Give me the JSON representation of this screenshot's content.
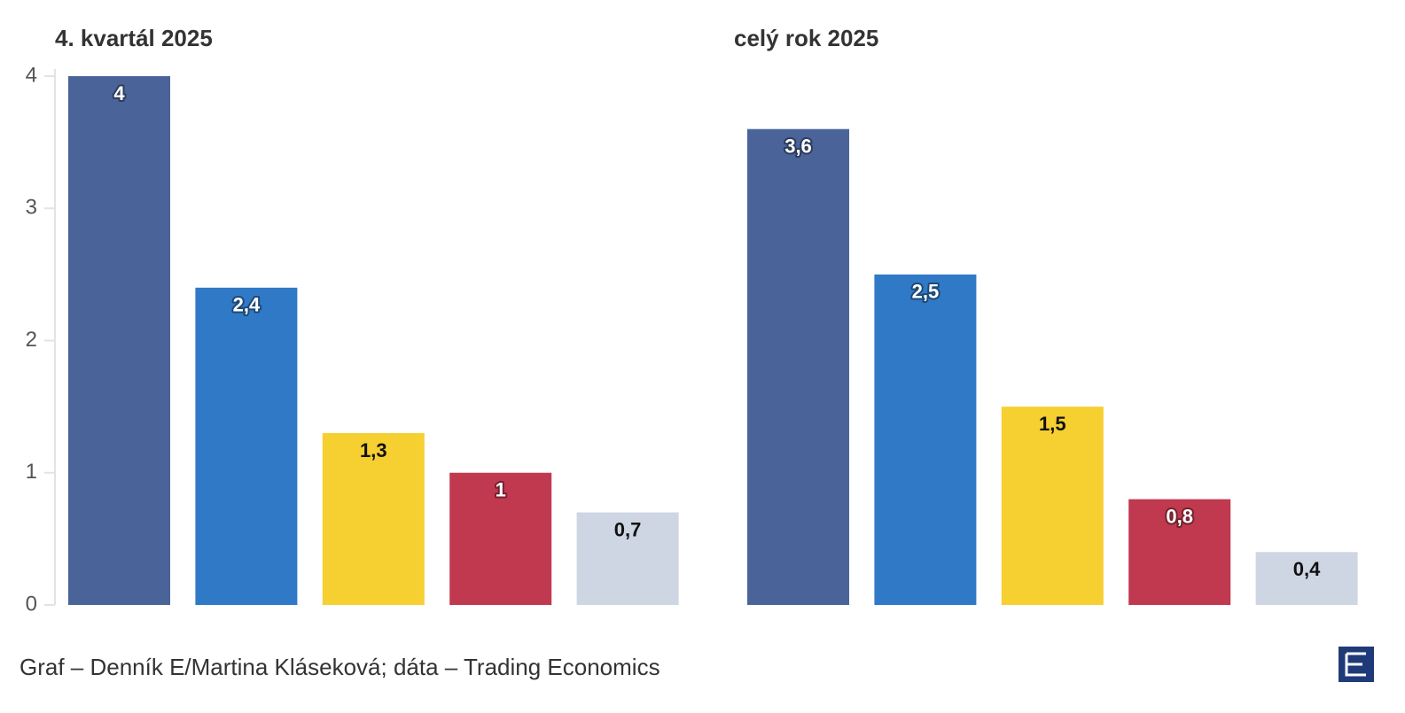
{
  "chart_data": [
    {
      "type": "bar",
      "title": "4. kvartál 2025",
      "values": [
        4,
        2.4,
        1.3,
        1,
        0.7
      ],
      "value_labels": [
        "4",
        "2,4",
        "1,3",
        "1",
        "0,7"
      ],
      "colors": [
        "#4a6499",
        "#3079c6",
        "#f6cf31",
        "#c0394f",
        "#ced5e3"
      ],
      "ylim": [
        0,
        4
      ],
      "yticks": [
        0,
        1,
        2,
        3,
        4
      ]
    },
    {
      "type": "bar",
      "title": "celý rok 2025",
      "values": [
        3.6,
        2.5,
        1.5,
        0.8,
        0.4
      ],
      "value_labels": [
        "3,6",
        "2,5",
        "1,5",
        "0,8",
        "0,4"
      ],
      "colors": [
        "#4a6499",
        "#3079c6",
        "#f6cf31",
        "#c0394f",
        "#ced5e3"
      ],
      "ylim": [
        0,
        4
      ]
    }
  ],
  "footer": {
    "source": "Graf – Denník E/Martina Kláseková; dáta – Trading Economics"
  }
}
